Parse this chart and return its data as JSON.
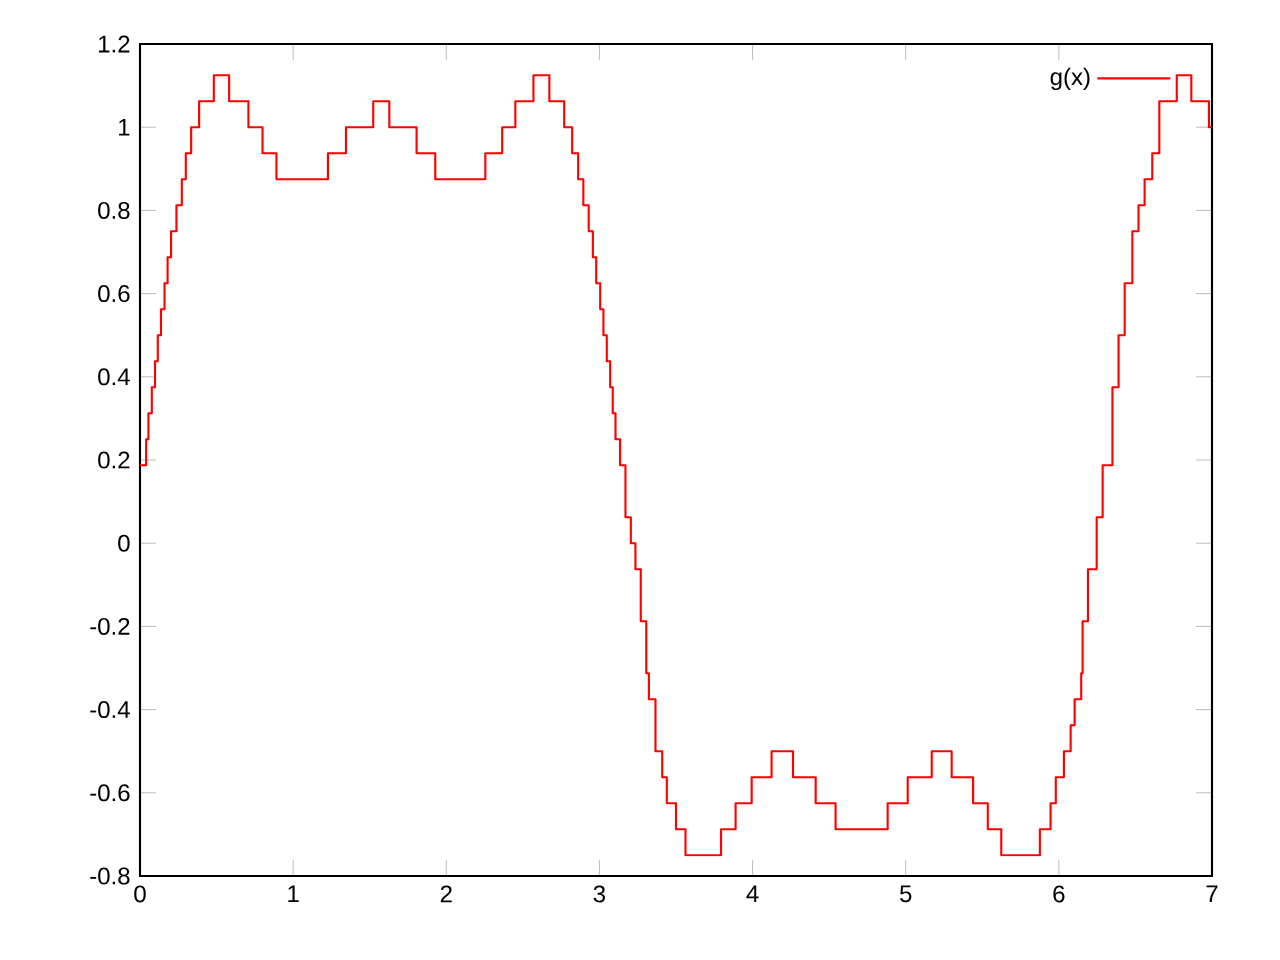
{
  "chart_data": {
    "type": "step",
    "xlim": [
      0,
      7
    ],
    "ylim": [
      -0.8,
      1.2
    ],
    "xticks": [
      0,
      1,
      2,
      3,
      4,
      5,
      6,
      7
    ],
    "yticks": [
      -0.8,
      -0.6,
      -0.4,
      -0.2,
      0,
      0.2,
      0.4,
      0.6,
      0.8,
      1,
      1.2
    ],
    "legend": "top right",
    "grid": false,
    "series": [
      {
        "name": "g(x)",
        "color": "#ff0000",
        "x": [
          0,
          0.04,
          0.055,
          0.077,
          0.098,
          0.116,
          0.137,
          0.16,
          0.18,
          0.203,
          0.238,
          0.273,
          0.299,
          0.334,
          0.386,
          0.482,
          0.582,
          0.708,
          0.8,
          0.891,
          1.227,
          1.345,
          1.523,
          1.628,
          1.806,
          1.928,
          2.255,
          2.365,
          2.451,
          2.569,
          2.673,
          2.77,
          2.822,
          2.861,
          2.895,
          2.93,
          2.957,
          2.979,
          3.005,
          3.026,
          3.048,
          3.07,
          3.087,
          3.105,
          3.135,
          3.17,
          3.205,
          3.235,
          3.27,
          3.306,
          3.323,
          3.366,
          3.41,
          3.44,
          3.5,
          3.562,
          3.794,
          3.889,
          3.994,
          4.124,
          4.264,
          4.412,
          4.542,
          4.882,
          5.013,
          5.17,
          5.3,
          5.44,
          5.536,
          5.624,
          5.876,
          5.946,
          5.98,
          6.033,
          6.077,
          6.103,
          6.146,
          6.155,
          6.19,
          6.247,
          6.286,
          6.35,
          6.39,
          6.43,
          6.48,
          6.52,
          6.56,
          6.61,
          6.656,
          6.77,
          6.865,
          6.98,
          7
        ],
        "values": [
          0.1875,
          0.25,
          0.3125,
          0.375,
          0.4375,
          0.5,
          0.5625,
          0.625,
          0.6875,
          0.75,
          0.8125,
          0.875,
          0.9375,
          1.0,
          1.0625,
          1.125,
          1.0625,
          1.0,
          0.9375,
          0.875,
          0.9375,
          1.0,
          1.0625,
          1.0,
          0.9375,
          0.875,
          0.9375,
          1.0,
          1.0625,
          1.125,
          1.0625,
          1.0,
          0.9375,
          0.875,
          0.8125,
          0.75,
          0.6875,
          0.625,
          0.5625,
          0.5,
          0.4375,
          0.375,
          0.3125,
          0.25,
          0.1875,
          0.0625,
          0,
          -0.0625,
          -0.1875,
          -0.3125,
          -0.375,
          -0.5,
          -0.5625,
          -0.625,
          -0.6875,
          -0.75,
          -0.6875,
          -0.625,
          -0.5625,
          -0.5,
          -0.5625,
          -0.625,
          -0.6875,
          -0.625,
          -0.5625,
          -0.5,
          -0.5625,
          -0.625,
          -0.6875,
          -0.75,
          -0.6875,
          -0.625,
          -0.5625,
          -0.5,
          -0.4375,
          -0.375,
          -0.3125,
          -0.1875,
          -0.0625,
          0.0625,
          0.1875,
          0.375,
          0.5,
          0.625,
          0.75,
          0.8125,
          0.875,
          0.9375,
          1.0625,
          1.125,
          1.0625,
          1.0,
          1.0
        ]
      }
    ]
  }
}
